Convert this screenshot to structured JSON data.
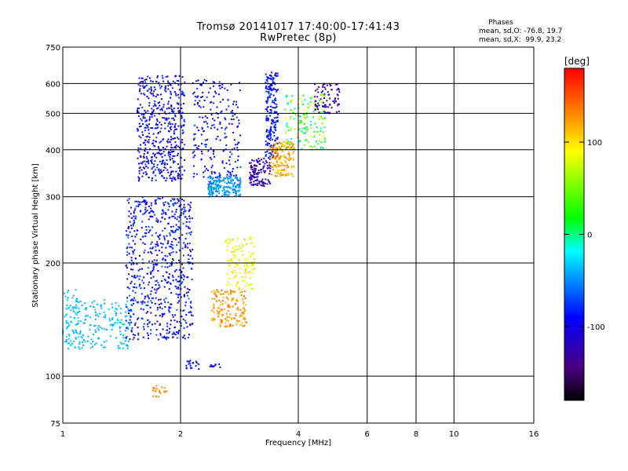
{
  "header": {
    "title_line1": "Tromsø 20141017 17:40:00-17:41:43",
    "title_line2": "RwPretec (8p)"
  },
  "stats": {
    "heading": "Phases",
    "line_o": "mean, sd,O: -76.8, 19.7",
    "line_x": "mean, sd,X:  99.9, 23.2"
  },
  "colorbar": {
    "unit_label": "[deg]",
    "tick_labels": [
      "100",
      "0",
      "-100"
    ],
    "tick_values": [
      100,
      0,
      -100
    ],
    "range": [
      -180,
      180
    ]
  },
  "chart_data": {
    "type": "scatter",
    "xlabel": "Frequency [MHz]",
    "ylabel": "Stationary phase Virtual Height [km]",
    "xscale": "log",
    "yscale": "log",
    "xlim": [
      1,
      16
    ],
    "ylim": [
      75,
      750
    ],
    "x_ticks": [
      1,
      2,
      4,
      6,
      8,
      10,
      16
    ],
    "x_tick_labels": [
      "1",
      "2",
      "4",
      "6",
      "8",
      "10",
      "16"
    ],
    "y_ticks": [
      75,
      100,
      200,
      300,
      400,
      500,
      600,
      750
    ],
    "y_tick_labels": [
      "75",
      "100",
      "200",
      "300",
      "400",
      "500",
      "600",
      "750"
    ],
    "grid": true,
    "color_encoding": "phase [deg]",
    "clusters": [
      {
        "f": [
          1.0,
          1.1
        ],
        "h": [
          118,
          170
        ],
        "phase": [
          -40,
          -30
        ],
        "n": 90
      },
      {
        "f": [
          1.1,
          1.5
        ],
        "h": [
          118,
          160
        ],
        "phase": [
          -45,
          -30
        ],
        "n": 160
      },
      {
        "f": [
          1.45,
          2.15
        ],
        "h": [
          125,
          300
        ],
        "phase": [
          -120,
          -60
        ],
        "n": 700
      },
      {
        "f": [
          1.55,
          2.05
        ],
        "h": [
          330,
          630
        ],
        "phase": [
          -120,
          -70
        ],
        "n": 500
      },
      {
        "f": [
          2.15,
          2.85
        ],
        "h": [
          330,
          620
        ],
        "phase": [
          -120,
          -70
        ],
        "n": 220
      },
      {
        "f": [
          2.35,
          2.85
        ],
        "h": [
          300,
          340
        ],
        "phase": [
          -60,
          -35
        ],
        "n": 200
      },
      {
        "f": [
          2.4,
          2.95
        ],
        "h": [
          135,
          170
        ],
        "phase": [
          110,
          140
        ],
        "n": 160
      },
      {
        "f": [
          2.6,
          3.1
        ],
        "h": [
          170,
          235
        ],
        "phase": [
          70,
          110
        ],
        "n": 120
      },
      {
        "f": [
          3.0,
          3.4
        ],
        "h": [
          320,
          380
        ],
        "phase": [
          -140,
          -110
        ],
        "n": 120
      },
      {
        "f": [
          3.3,
          3.55
        ],
        "h": [
          380,
          650
        ],
        "phase": [
          -100,
          -70
        ],
        "n": 200
      },
      {
        "f": [
          3.4,
          3.9
        ],
        "h": [
          340,
          420
        ],
        "phase": [
          100,
          140
        ],
        "n": 160
      },
      {
        "f": [
          3.7,
          4.7
        ],
        "h": [
          400,
          560
        ],
        "phase": [
          -40,
          100
        ],
        "n": 160
      },
      {
        "f": [
          4.4,
          5.1
        ],
        "h": [
          500,
          600
        ],
        "phase": [
          -140,
          -110
        ],
        "n": 80
      },
      {
        "f": [
          2.05,
          2.25
        ],
        "h": [
          104,
          110
        ],
        "phase": [
          -90,
          -80
        ],
        "n": 20
      },
      {
        "f": [
          2.35,
          2.55
        ],
        "h": [
          105,
          108
        ],
        "phase": [
          -100,
          -90
        ],
        "n": 10
      },
      {
        "f": [
          1.7,
          1.85
        ],
        "h": [
          88,
          95
        ],
        "phase": [
          120,
          140
        ],
        "n": 20
      }
    ]
  }
}
